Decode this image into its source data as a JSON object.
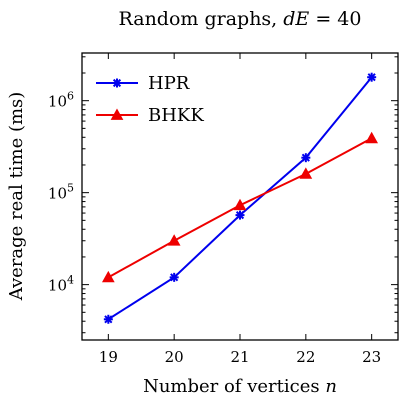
{
  "chart_data": {
    "type": "line",
    "title": "Random graphs, dE = 40",
    "xlabel": "Number of vertices n",
    "ylabel": "Average real time (ms)",
    "x": [
      19,
      20,
      21,
      22,
      23
    ],
    "xlim": [
      18.6,
      23.4
    ],
    "ylim": [
      2500,
      3300000
    ],
    "yscale": "log",
    "yticks": [
      {
        "value": 10000,
        "base": "10",
        "exp": "4"
      },
      {
        "value": 100000,
        "base": "10",
        "exp": "5"
      },
      {
        "value": 1000000,
        "base": "10",
        "exp": "6"
      }
    ],
    "grid": false,
    "legend_position": "top-left",
    "series": [
      {
        "name": "HPR",
        "color": "#0000ee",
        "marker": "asterisk",
        "values": [
          4200,
          12000,
          57000,
          240000,
          1800000
        ]
      },
      {
        "name": "BHKK",
        "color": "#ee0000",
        "marker": "triangle",
        "values": [
          12000,
          30000,
          73000,
          160000,
          390000
        ]
      }
    ]
  }
}
